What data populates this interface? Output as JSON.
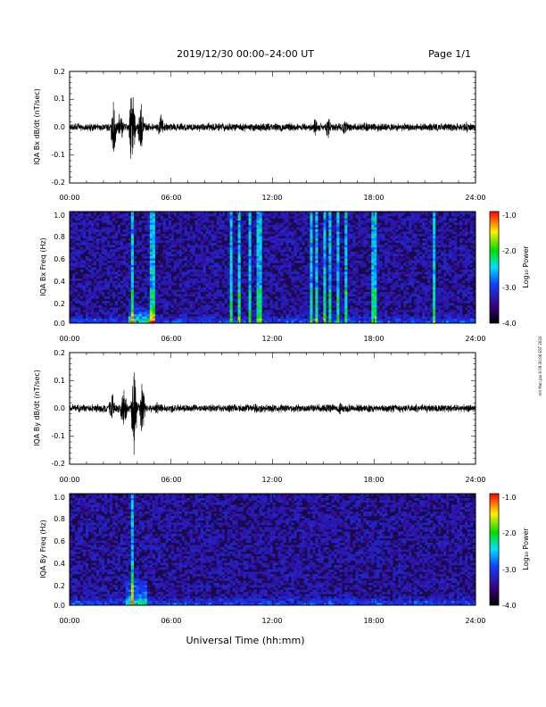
{
  "header": {
    "title": "2019/12/30  00:00–24:00 UT",
    "page": "Page 1/1"
  },
  "side_note": "mit Mon Jan 6 09:30:06 EST 2020",
  "xlabel": "Universal Time (hh:mm)",
  "time_ticks": [
    "00:00",
    "06:00",
    "12:00",
    "18:00",
    "24:00"
  ],
  "colorbar": {
    "label": "Log₁₀ Power",
    "ticks": [
      "-1.0",
      "-2.0",
      "-3.0",
      "-4.0"
    ],
    "range": [
      -4.0,
      -1.0
    ]
  },
  "chart_data": [
    {
      "type": "line",
      "ylabel": "IQA Bx dB/dt (nT/sec)",
      "xlim": [
        0,
        24
      ],
      "ylim": [
        -0.2,
        0.2
      ],
      "yticks": [
        "0.2",
        "0.1",
        "0.0",
        "-0.1",
        "-0.2"
      ],
      "x_ticks": [
        "00:00",
        "06:00",
        "12:00",
        "18:00",
        "24:00"
      ],
      "baseline_amplitude": 0.012,
      "bursts": [
        {
          "t": 2.6,
          "amp": 0.13
        },
        {
          "t": 3.0,
          "amp": 0.07
        },
        {
          "t": 3.7,
          "amp": 0.2
        },
        {
          "t": 4.2,
          "amp": 0.12
        },
        {
          "t": 5.4,
          "amp": 0.06
        },
        {
          "t": 14.5,
          "amp": 0.04
        },
        {
          "t": 15.3,
          "amp": 0.05
        },
        {
          "t": 16.3,
          "amp": 0.04
        },
        {
          "t": 17.5,
          "amp": 0.03
        },
        {
          "t": 23.5,
          "amp": 0.03
        }
      ]
    },
    {
      "type": "heatmap",
      "ylabel": "IQA Bx Freq (Hz)",
      "xlim": [
        0,
        24
      ],
      "ylim": [
        0.0,
        1.0
      ],
      "yticks": [
        "1.0",
        "0.8",
        "0.6",
        "0.4",
        "0.2",
        "0.0"
      ],
      "x_ticks": [
        "00:00",
        "06:00",
        "12:00",
        "18:00",
        "24:00"
      ],
      "colorbar_range": [
        -4.0,
        -1.0
      ],
      "vertical_stripes": [
        3.7,
        4.9,
        9.6,
        10.0,
        10.7,
        11.2,
        14.3,
        14.6,
        15.1,
        15.4,
        15.9,
        16.4,
        18.0,
        21.6
      ],
      "low_freq_blob": {
        "t": [
          3.5,
          5.0
        ],
        "f": [
          0.0,
          0.15
        ]
      }
    },
    {
      "type": "line",
      "ylabel": "IQA By dB/dt (nT/sec)",
      "xlim": [
        0,
        24
      ],
      "ylim": [
        -0.2,
        0.2
      ],
      "yticks": [
        "0.2",
        "0.1",
        "0.0",
        "-0.1",
        "-0.2"
      ],
      "x_ticks": [
        "00:00",
        "06:00",
        "12:00",
        "18:00",
        "24:00"
      ],
      "baseline_amplitude": 0.012,
      "bursts": [
        {
          "t": 2.5,
          "amp": 0.08
        },
        {
          "t": 3.2,
          "amp": 0.13
        },
        {
          "t": 3.8,
          "amp": 0.2
        },
        {
          "t": 4.3,
          "amp": 0.15
        },
        {
          "t": 5.2,
          "amp": 0.05
        },
        {
          "t": 11.0,
          "amp": 0.025
        },
        {
          "t": 16.0,
          "amp": 0.03
        }
      ]
    },
    {
      "type": "heatmap",
      "ylabel": "IQA By Freq (Hz)",
      "xlim": [
        0,
        24
      ],
      "ylim": [
        0.0,
        1.0
      ],
      "yticks": [
        "1.0",
        "0.8",
        "0.6",
        "0.4",
        "0.2",
        "0.0"
      ],
      "x_ticks": [
        "00:00",
        "06:00",
        "12:00",
        "18:00",
        "24:00"
      ],
      "colorbar_range": [
        -4.0,
        -1.0
      ],
      "vertical_stripes": [
        3.7
      ],
      "low_freq_blob": {
        "t": [
          3.3,
          4.6
        ],
        "f": [
          0.0,
          0.25
        ]
      }
    }
  ]
}
